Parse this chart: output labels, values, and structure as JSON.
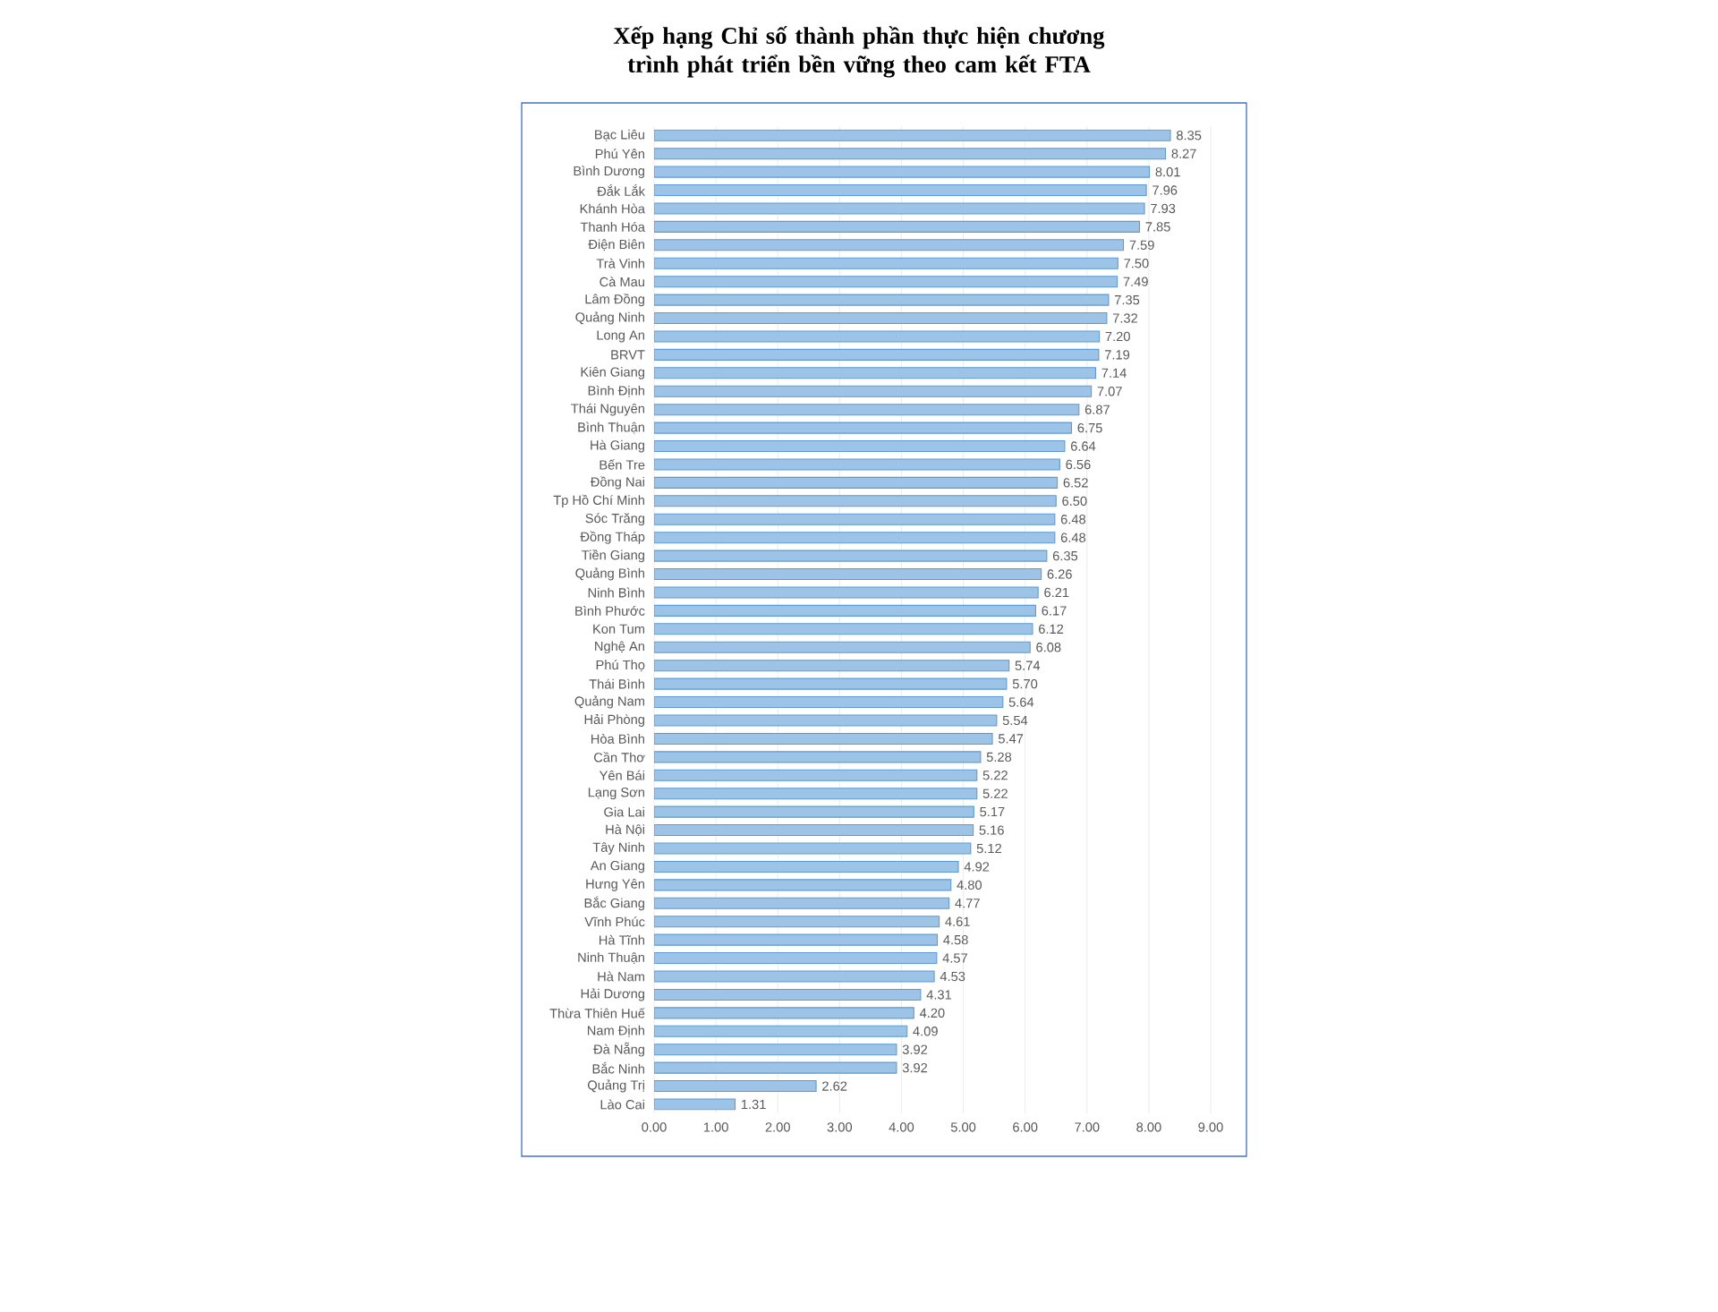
{
  "chart_data": {
    "type": "bar",
    "orientation": "horizontal",
    "title": "Xếp hạng Chỉ số thành phần thực hiện chương trình phát triển bền vững theo cam kết FTA",
    "categories": [
      "Bạc Liêu",
      "Phú Yên",
      "Bình Dương",
      "Đắk Lắk",
      "Khánh Hòa",
      "Thanh Hóa",
      "Điện Biên",
      "Trà Vinh",
      "Cà Mau",
      "Lâm Đồng",
      "Quảng Ninh",
      "Long An",
      "BRVT",
      "Kiên Giang",
      "Bình Định",
      "Thái Nguyên",
      "Bình Thuận",
      "Hà Giang",
      "Bến Tre",
      "Đồng Nai",
      "Tp Hồ Chí Minh",
      "Sóc Trăng",
      "Đồng Tháp",
      "Tiền Giang",
      "Quảng Bình",
      "Ninh Bình",
      "Bình Phước",
      "Kon Tum",
      "Nghệ An",
      "Phú Thọ",
      "Thái Bình",
      "Quảng Nam",
      "Hải Phòng",
      "Hòa Bình",
      "Cần Thơ",
      "Yên Bái",
      "Lạng Sơn",
      "Gia Lai",
      "Hà Nội",
      "Tây Ninh",
      "An Giang",
      "Hưng Yên",
      "Bắc Giang",
      "Vĩnh Phúc",
      "Hà Tĩnh",
      "Ninh Thuận",
      "Hà Nam",
      "Hải Dương",
      "Thừa Thiên Huế",
      "Nam Định",
      "Đà Nẵng",
      "Bắc Ninh",
      "Quảng Trị",
      "Lào Cai"
    ],
    "values": [
      8.35,
      8.27,
      8.01,
      7.96,
      7.93,
      7.85,
      7.59,
      7.5,
      7.49,
      7.35,
      7.32,
      7.2,
      7.19,
      7.14,
      7.07,
      6.87,
      6.75,
      6.64,
      6.56,
      6.52,
      6.5,
      6.48,
      6.48,
      6.35,
      6.26,
      6.21,
      6.17,
      6.12,
      6.08,
      5.74,
      5.7,
      5.64,
      5.54,
      5.47,
      5.28,
      5.22,
      5.22,
      5.17,
      5.16,
      5.12,
      4.92,
      4.8,
      4.77,
      4.61,
      4.58,
      4.57,
      4.53,
      4.31,
      4.2,
      4.09,
      3.92,
      3.92,
      2.62,
      1.31
    ],
    "value_labels": [
      "8.35",
      "8.27",
      "8.01",
      "7.96",
      "7.93",
      "7.85",
      "7.59",
      "7.50",
      "7.49",
      "7.35",
      "7.32",
      "7.20",
      "7.19",
      "7.14",
      "7.07",
      "6.87",
      "6.75",
      "6.64",
      "6.56",
      "6.52",
      "6.50",
      "6.48",
      "6.48",
      "6.35",
      "6.26",
      "6.21",
      "6.17",
      "6.12",
      "6.08",
      "5.74",
      "5.70",
      "5.64",
      "5.54",
      "5.47",
      "5.28",
      "5.22",
      "5.22",
      "5.17",
      "5.16",
      "5.12",
      "4.92",
      "4.80",
      "4.77",
      "4.61",
      "4.58",
      "4.57",
      "4.53",
      "4.31",
      "4.20",
      "4.09",
      "3.92",
      "3.92",
      "2.62",
      "1.31"
    ],
    "color": "#9dc3e6",
    "xlim": [
      0,
      9
    ],
    "xticks": [
      {
        "value": 0,
        "label": "0.00"
      },
      {
        "value": 1,
        "label": "1.00"
      },
      {
        "value": 2,
        "label": "2.00"
      },
      {
        "value": 3,
        "label": "3.00"
      },
      {
        "value": 4,
        "label": "4.00"
      },
      {
        "value": 5,
        "label": "5.00"
      },
      {
        "value": 6,
        "label": "6.00"
      },
      {
        "value": 7,
        "label": "7.00"
      },
      {
        "value": 8,
        "label": "8.00"
      },
      {
        "value": 9,
        "label": "9.00"
      }
    ],
    "grid": "x"
  }
}
